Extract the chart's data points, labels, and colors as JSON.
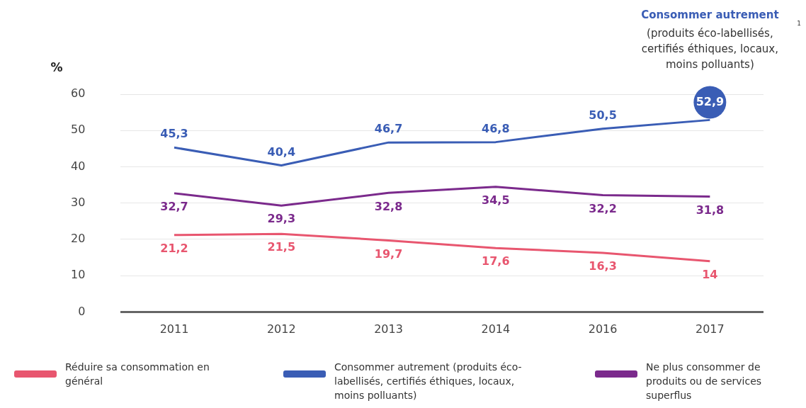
{
  "chart_data": {
    "type": "line",
    "ylabel": "%",
    "categories": [
      "2011",
      "2012",
      "2013",
      "2014",
      "2016",
      "2017"
    ],
    "series": [
      {
        "name": "Réduire sa consommation en général",
        "color": "#e8566f",
        "values": [
          21.2,
          21.5,
          19.7,
          17.6,
          16.3,
          14
        ],
        "value_labels": [
          "21,2",
          "21,5",
          "19,7",
          "17,6",
          "16,3",
          "14"
        ]
      },
      {
        "name": "Consommer autrement (produits éco-labellisés, certifiés éthiques, locaux, moins polluants)",
        "color": "#3a5db5",
        "values": [
          45.3,
          40.4,
          46.7,
          46.8,
          50.5,
          52.9
        ],
        "value_labels": [
          "45,3",
          "40,4",
          "46,7",
          "46,8",
          "50,5",
          "52,9"
        ]
      },
      {
        "name": "Ne plus consommer de produits ou de services superflus",
        "color": "#7b2a8c",
        "values": [
          32.7,
          29.3,
          32.8,
          34.5,
          32.2,
          31.8
        ],
        "value_labels": [
          "32,7",
          "29,3",
          "32,8",
          "34,5",
          "32,2",
          "31,8"
        ]
      }
    ],
    "ylim": [
      0,
      60
    ],
    "yticks": [
      0,
      10,
      20,
      30,
      40,
      50,
      60
    ],
    "grid": "y",
    "legend": "bottom",
    "marker": "none",
    "line_style": "solid",
    "annotations": [
      "Consommer autrement",
      "(produits éco-labellisés, certifiés éthiques, locaux, moins polluants)",
      "1"
    ]
  }
}
